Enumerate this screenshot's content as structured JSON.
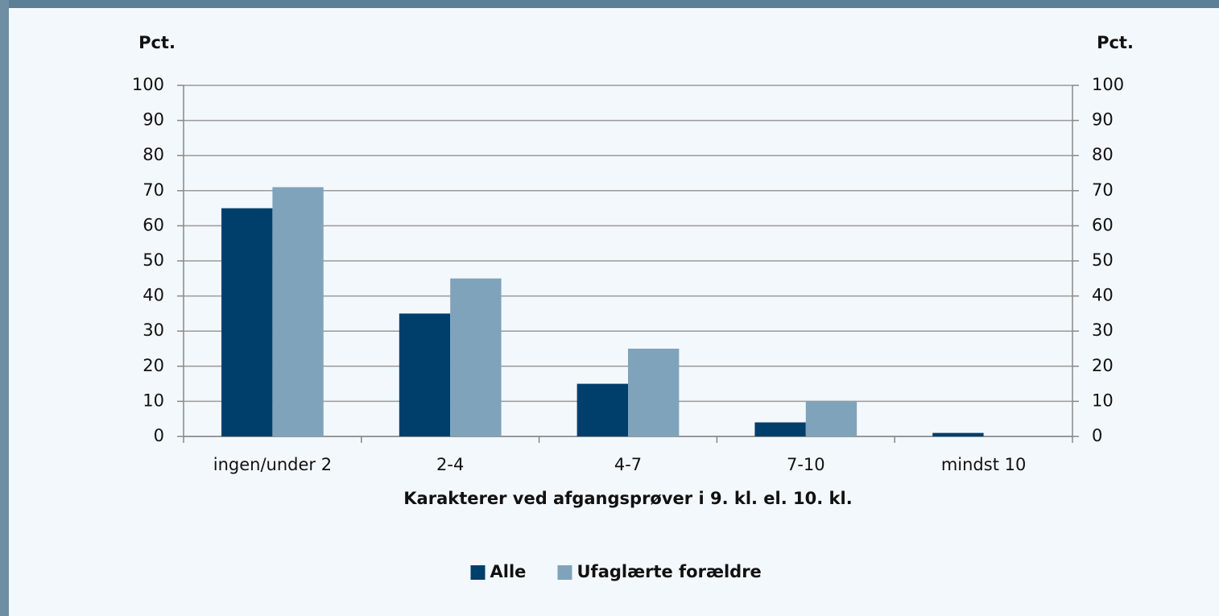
{
  "chart_data": {
    "type": "bar",
    "y_label": "Pct.",
    "y2_label": "Pct.",
    "x_label": "Karakterer ved afgangsprøver i 9. kl. el. 10. kl.",
    "categories": [
      "ingen/under 2",
      "2-4",
      "4-7",
      "7-10",
      "mindst 10"
    ],
    "series": [
      {
        "name": "Alle",
        "color": "#003f6b",
        "values": [
          65,
          35,
          15,
          4,
          1
        ]
      },
      {
        "name": "Ufaglærte forældre",
        "color": "#7fa3ba",
        "values": [
          71,
          45,
          25,
          10,
          0
        ]
      }
    ],
    "ylim": [
      0,
      100
    ],
    "yticks": [
      0,
      10,
      20,
      30,
      40,
      50,
      60,
      70,
      80,
      90,
      100
    ],
    "y2lim": [
      0,
      100
    ],
    "y2ticks": [
      0,
      10,
      20,
      30,
      40,
      50,
      60,
      70,
      80,
      90,
      100
    ],
    "grid": true,
    "legend": "bottom"
  }
}
